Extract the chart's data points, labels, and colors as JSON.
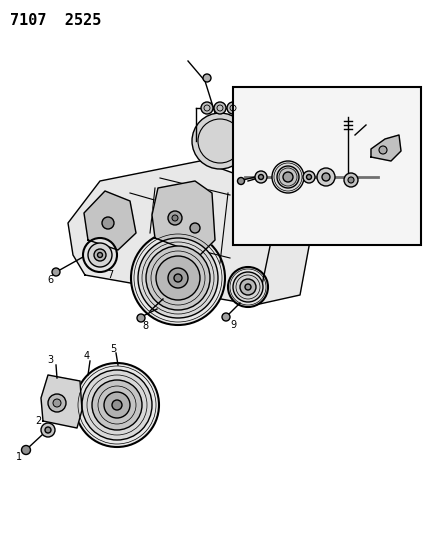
{
  "title": "7107  2525",
  "bg_color": "#ffffff",
  "line_color": "#000000",
  "title_fontsize": 11,
  "label_fontsize": 7.5,
  "fig_width": 4.28,
  "fig_height": 5.33,
  "dpi": 100
}
